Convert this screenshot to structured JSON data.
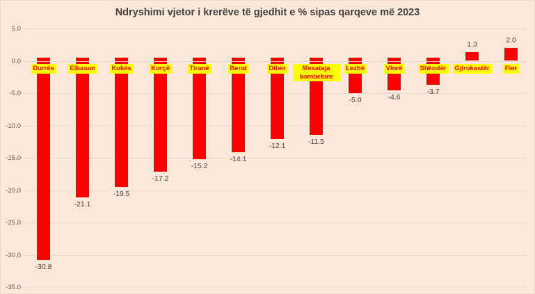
{
  "chart_data": {
    "type": "bar",
    "title": "Ndryshimi vjetor i krerëve të gjedhit e % sipas qarqeve më 2023",
    "categories": [
      "Durrës",
      "Elbasan",
      "Kukës",
      "Korçë",
      "Tiranë",
      "Berat",
      "Dibër",
      "Mesataja kombetare",
      "Lezhë",
      "Vlorë",
      "Shkodër",
      "Gjirokastër",
      "Fier"
    ],
    "values": [
      -30.8,
      -21.1,
      -19.5,
      -17.2,
      -15.2,
      -14.1,
      -12.1,
      -11.5,
      -5.0,
      -4.6,
      -3.7,
      1.3,
      2.0
    ],
    "data_labels": [
      "-30.8",
      "-21.1",
      "-19.5",
      "-17.2",
      "-15.2",
      "-14.1",
      "-12.1",
      "-11.5",
      "-5.0",
      "-4.6",
      "-3.7",
      "1.3",
      "2.0"
    ],
    "xlabel": "",
    "ylabel": "",
    "ylim": [
      -35.0,
      5.0
    ],
    "y_ticks": [
      "5.0",
      "0.0",
      "-5.0",
      "-10.0",
      "-15.0",
      "-20.0",
      "-25.0",
      "-30.0",
      "-35.0"
    ],
    "y_tick_values": [
      5,
      0,
      -5,
      -10,
      -15,
      -20,
      -25,
      -30,
      -35
    ],
    "grid": "horizontal",
    "legend": "none",
    "colors": {
      "bar": "#ff0000",
      "category_label_bg": "#ffff00",
      "category_label_text": "#ff0000",
      "background": "#fce8d9",
      "gridline": "#e4d9d2",
      "tick_label": "#595959",
      "data_label": "#404040",
      "title": "#404040"
    }
  }
}
